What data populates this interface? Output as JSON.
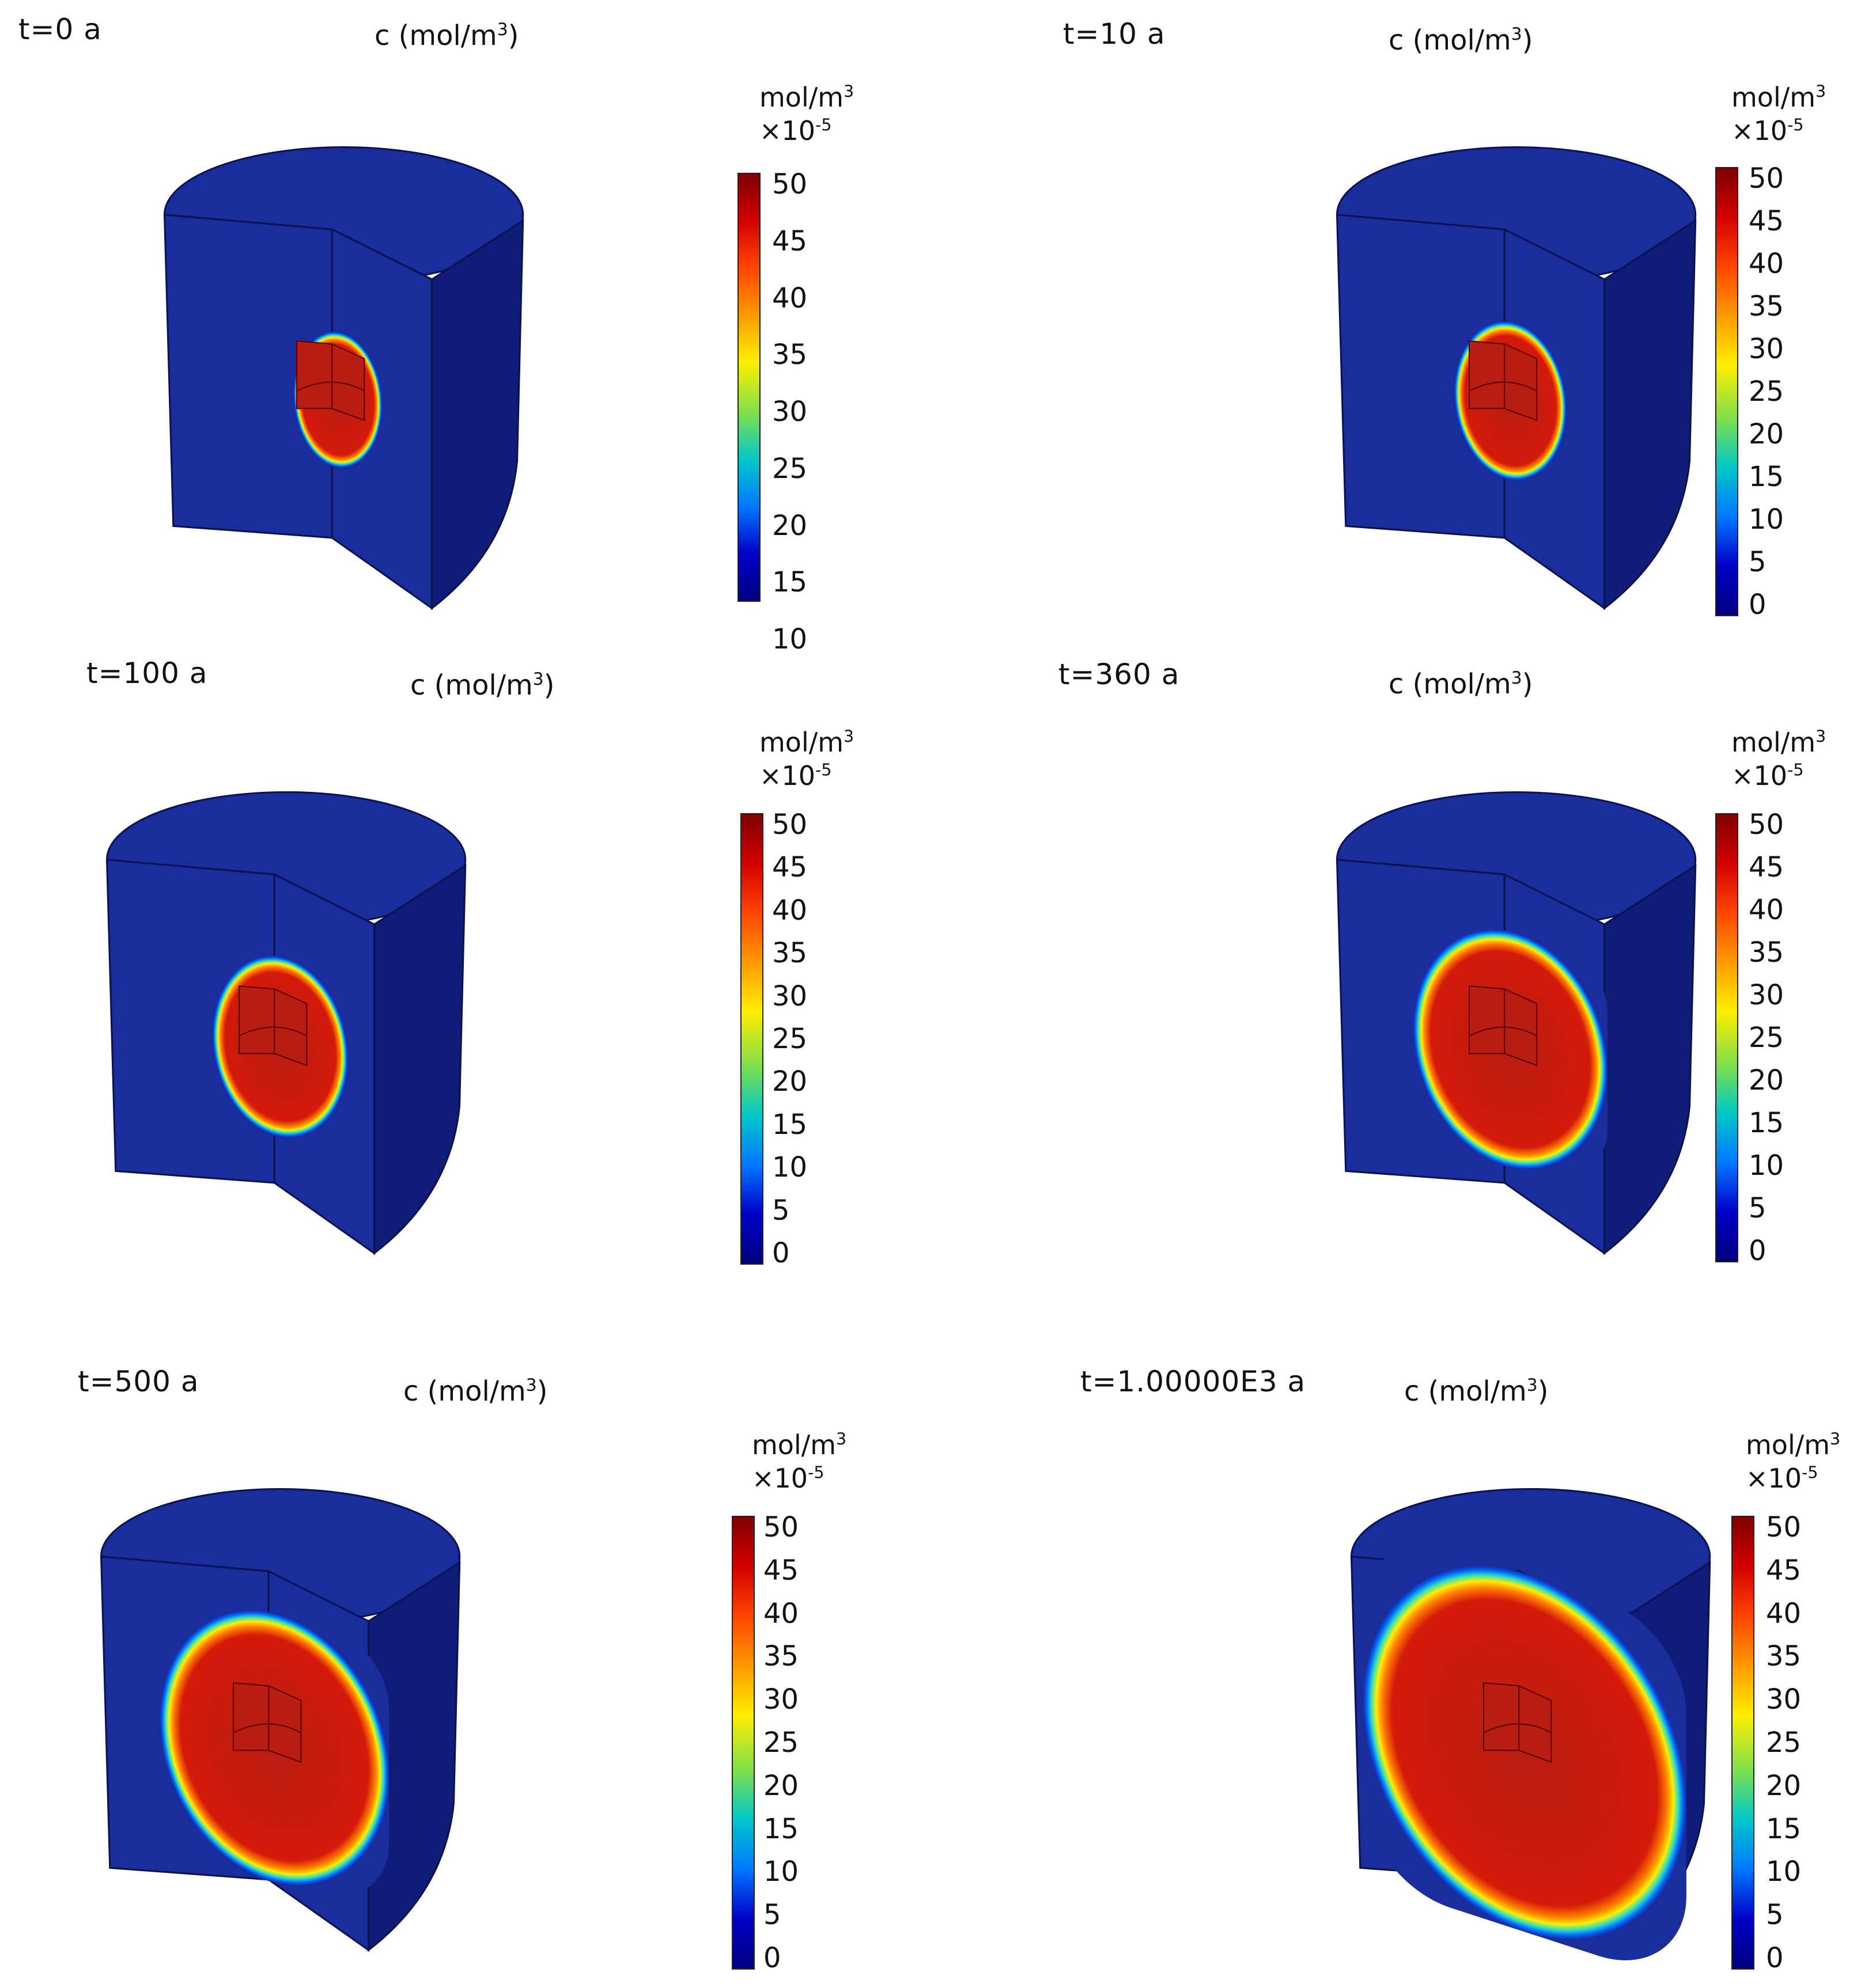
{
  "panels": [
    {
      "time_label": "t=0 a",
      "title_prefix": "c (mol/m",
      "title_exp": "3",
      "title_suffix": ")",
      "unit_line1": "mol/m",
      "unit_exp": "3",
      "scale_line": "×10",
      "scale_exp": "-5",
      "ticks": [
        "50",
        "45",
        "40",
        "35",
        "30",
        "25",
        "20",
        "15",
        "10"
      ],
      "spread": 0
    },
    {
      "time_label": "t=10 a",
      "title_prefix": "c (mol/m",
      "title_exp": "3",
      "title_suffix": ")",
      "unit_line1": "mol/m",
      "unit_exp": "3",
      "scale_line": "×10",
      "scale_exp": "-5",
      "ticks": [
        "50",
        "45",
        "40",
        "35",
        "30",
        "25",
        "20",
        "15",
        "10",
        "5",
        "0"
      ],
      "spread": 0.1
    },
    {
      "time_label": "t=100 a",
      "title_prefix": "c (mol/m",
      "title_exp": "3",
      "title_suffix": ")",
      "unit_line1": "mol/m",
      "unit_exp": "3",
      "scale_line": "×10",
      "scale_exp": "-5",
      "ticks": [
        "50",
        "45",
        "40",
        "35",
        "30",
        "25",
        "20",
        "15",
        "10",
        "5",
        "0"
      ],
      "spread": 0.2
    },
    {
      "time_label": "t=360 a",
      "title_prefix": "c (mol/m",
      "title_exp": "3",
      "title_suffix": ")",
      "unit_line1": "mol/m",
      "unit_exp": "3",
      "scale_line": "×10",
      "scale_exp": "-5",
      "ticks": [
        "50",
        "45",
        "40",
        "35",
        "30",
        "25",
        "20",
        "15",
        "10",
        "5",
        "0"
      ],
      "spread": 0.45
    },
    {
      "time_label": "t=500 a",
      "title_prefix": "c (mol/m",
      "title_exp": "3",
      "title_suffix": ")",
      "unit_line1": "mol/m",
      "unit_exp": "3",
      "scale_line": "×10",
      "scale_exp": "-5",
      "ticks": [
        "50",
        "45",
        "40",
        "35",
        "30",
        "25",
        "20",
        "15",
        "10",
        "5",
        "0"
      ],
      "spread": 0.6
    },
    {
      "time_label": "t=1.00000E3 a",
      "title_prefix": "c (mol/m",
      "title_exp": "3",
      "title_suffix": ")",
      "unit_line1": "mol/m",
      "unit_exp": "3",
      "scale_line": "×10",
      "scale_exp": "-5",
      "ticks": [
        "50",
        "45",
        "40",
        "35",
        "30",
        "25",
        "20",
        "15",
        "10",
        "5",
        "0"
      ],
      "spread": 1.0
    }
  ],
  "colors": {
    "domain_blue": "#1a2d9c",
    "domain_side": "#0f1d78",
    "source_red": "#b81d12",
    "colormap": [
      "#7f0000",
      "#d40000",
      "#ff4500",
      "#ff9900",
      "#ffee00",
      "#7fe04a",
      "#00c8c8",
      "#0078ff",
      "#0000c8",
      "#00007f"
    ]
  }
}
